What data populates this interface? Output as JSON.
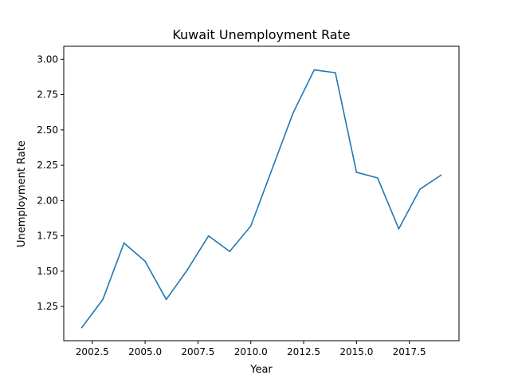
{
  "chart_data": {
    "type": "line",
    "title": "Kuwait Unemployment Rate",
    "xlabel": "Year",
    "ylabel": "Unemployment Rate",
    "xlim": [
      2001.15,
      2019.85
    ],
    "ylim": [
      1.008,
      3.092
    ],
    "xticks": [
      2002.5,
      2005.0,
      2007.5,
      2010.0,
      2012.5,
      2015.0,
      2017.5
    ],
    "xtick_labels": [
      "2002.5",
      "2005.0",
      "2007.5",
      "2010.0",
      "2012.5",
      "2015.0",
      "2017.5"
    ],
    "yticks": [
      1.25,
      1.5,
      1.75,
      2.0,
      2.25,
      2.5,
      2.75,
      3.0
    ],
    "ytick_labels": [
      "1.25",
      "1.50",
      "1.75",
      "2.00",
      "2.25",
      "2.50",
      "2.75",
      "3.00"
    ],
    "grid": false,
    "line_color": "#1f77b4",
    "series": [
      {
        "x": [
          2002,
          2003,
          2004,
          2005,
          2006,
          2007,
          2008,
          2009,
          2010,
          2011,
          2012,
          2013,
          2014,
          2015,
          2016,
          2017,
          2018,
          2019
        ],
        "values": [
          1.1,
          1.3,
          1.7,
          1.57,
          1.3,
          1.51,
          1.75,
          1.64,
          1.82,
          2.22,
          2.62,
          2.925,
          2.905,
          2.2,
          2.16,
          1.8,
          2.08,
          2.18
        ]
      }
    ]
  }
}
